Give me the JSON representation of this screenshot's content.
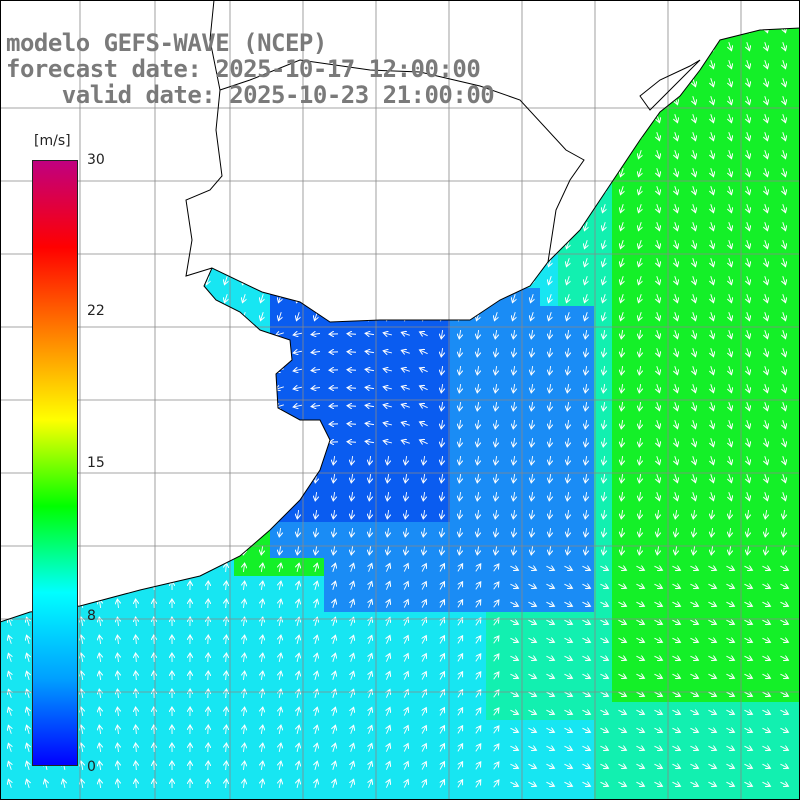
{
  "title": {
    "line1": "modelo GEFS-WAVE (NCEP)",
    "line2": "forecast date: 2025-10-17 12:00:00",
    "line3": "    valid date: 2025-10-23 21:00:00"
  },
  "colorbar": {
    "unit": "[m/s]",
    "ticks": [
      "30",
      "22",
      "15",
      "8",
      "0"
    ],
    "colors": [
      "#0000ff",
      "#00a0ff",
      "#00ffff",
      "#00ff00",
      "#ffff00",
      "#ff8000",
      "#ff0000",
      "#c00080"
    ]
  },
  "map": {
    "land_color": "#ffffff",
    "coast_color": "#000000",
    "grid_color": "#888888",
    "arrow_color": "#ffffff",
    "palette": {
      "calm_blue": "#0a5cf0",
      "mid_blue": "#1a8cf5",
      "cyan": "#17e6f2",
      "cyan_green": "#12f0b0",
      "green": "#14f028"
    }
  }
}
